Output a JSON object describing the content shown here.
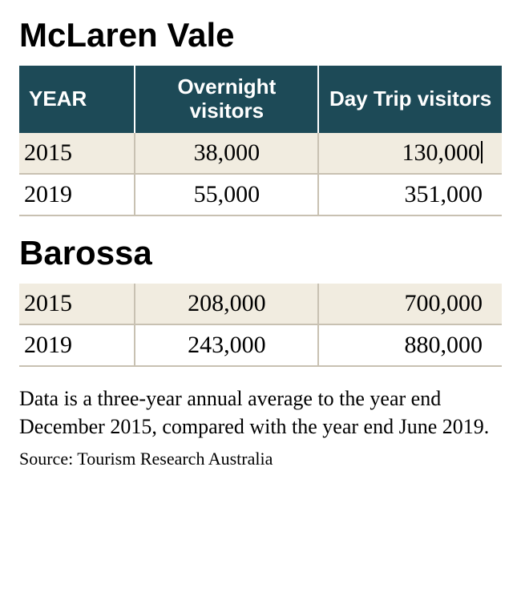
{
  "regions": [
    {
      "title": "McLaren Vale",
      "showHeader": true,
      "rows": [
        {
          "year": "2015",
          "overnight": "38,000",
          "daytrip": "130,000",
          "cursor": true
        },
        {
          "year": "2019",
          "overnight": "55,000",
          "daytrip": "351,000"
        }
      ]
    },
    {
      "title": "Barossa",
      "showHeader": false,
      "rows": [
        {
          "year": "2015",
          "overnight": "208,000",
          "daytrip": "700,000"
        },
        {
          "year": "2019",
          "overnight": "243,000",
          "daytrip": "880,000"
        }
      ]
    }
  ],
  "header": {
    "year": "YEAR",
    "overnight": "Overnight visitors",
    "daytrip": "Day Trip visitors"
  },
  "caption": "Data is a three-year annual average to the year end December 2015, compared with the year end June 2019.",
  "source": "Source: Tourism Research Australia",
  "style": {
    "header_bg": "#1d4a57",
    "header_text": "#ffffff",
    "row_odd_bg": "#f1ece0",
    "row_even_bg": "#ffffff",
    "border_color": "#c8c1b2",
    "title_fontsize": 42,
    "header_fontsize": 26,
    "cell_fontsize": 30,
    "caption_fontsize": 26,
    "source_fontsize": 22
  }
}
